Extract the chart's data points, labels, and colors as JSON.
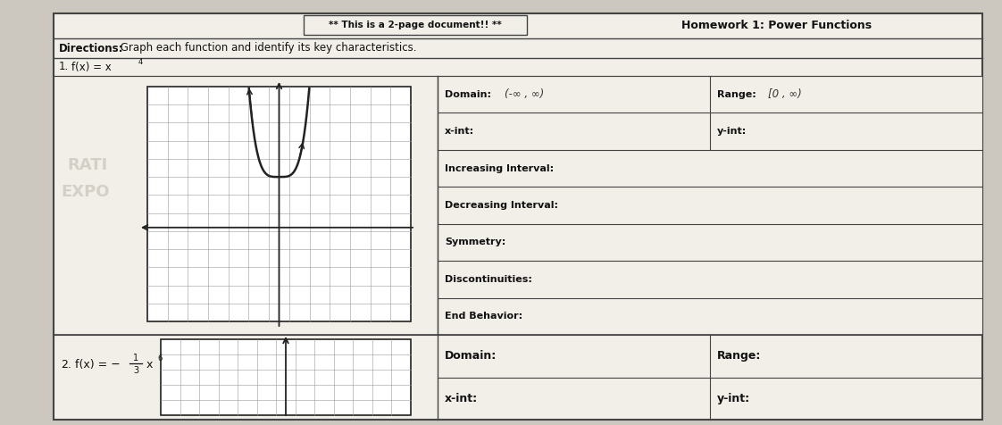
{
  "title": "Homework 1: Power Functions",
  "subtitle": "** This is a 2-page document!! **",
  "directions_bold": "Directions:",
  "directions_rest": " Graph each function and identify its key characteristics.",
  "p1_num": "1.",
  "p1_fx": "f(x) = x",
  "p1_exp": "4",
  "domain1": "(-∞ , ∞)",
  "range1": "[0 , ∞)",
  "p2_prefix": "2. f(x) = -",
  "p2_num": "1",
  "p2_den": "3",
  "p2_var": "x",
  "p2_exp": "6",
  "bg_color": "#ccc8c0",
  "paper_color": "#f2efe8",
  "paper_color2": "#e8e4dc",
  "grid_color": "#999999",
  "axis_color": "#222222",
  "border_color": "#444444",
  "text_color": "#111111",
  "faint_color": "#c0bbb2",
  "row_labels_p1": [
    "Domain:",
    "x-int:",
    "Increasing Interval:",
    "Decreasing Interval:",
    "Symmetry:",
    "Discontinuities:",
    "End Behavior:"
  ],
  "row_labels_p1_right": [
    "Range:",
    "y-int:"
  ],
  "row_labels_p2": [
    "Domain:",
    "x-int:"
  ],
  "row_labels_p2_right": [
    "Range:",
    "y-int:"
  ]
}
